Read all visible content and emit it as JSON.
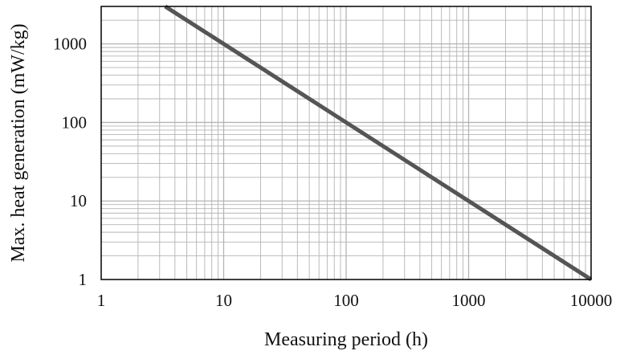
{
  "chart_data": {
    "type": "line",
    "title": "",
    "xlabel": "Measuring period (h)",
    "ylabel": "Max. heat generation (mW/kg)",
    "x_scale": "log",
    "y_scale": "log",
    "xlim": [
      1,
      10000
    ],
    "ylim": [
      1,
      3000
    ],
    "x_ticks": [
      "1",
      "10",
      "100",
      "1000",
      "10000"
    ],
    "y_ticks": [
      "1",
      "10",
      "100",
      "1000"
    ],
    "grid": true,
    "legend": "none",
    "series": [
      {
        "x": [
          3.33,
          10,
          100,
          1000,
          10000
        ],
        "y": [
          3000,
          1000,
          100,
          10,
          1
        ]
      }
    ],
    "colors": {
      "line": "#555555",
      "grid": "#b4b4b4",
      "frame": "#000000"
    }
  }
}
